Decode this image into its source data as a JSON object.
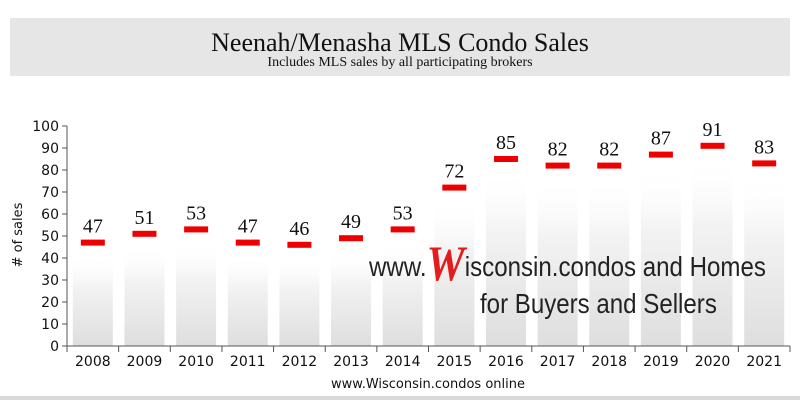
{
  "page": {
    "title": "Neenah/Menasha MLS Condo Sales",
    "subtitle": "Includes MLS sales by all participating brokers"
  },
  "watermark": {
    "line1_prefix": "www.",
    "line1_logo_letter": "W",
    "line1_suffix": "isconsin.condos and Homes",
    "line2": "for Buyers and Sellers",
    "logo_color": "#e31c1c"
  },
  "chart_data": {
    "type": "bar",
    "categories": [
      "2008",
      "2009",
      "2010",
      "2011",
      "2012",
      "2013",
      "2014",
      "2015",
      "2016",
      "2017",
      "2018",
      "2019",
      "2020",
      "2021"
    ],
    "values": [
      47,
      51,
      53,
      47,
      46,
      49,
      53,
      72,
      85,
      82,
      82,
      87,
      91,
      83
    ],
    "title": "",
    "xlabel": "www.Wisconsin.condos online",
    "ylabel": "# of sales",
    "ylim": [
      0,
      100
    ],
    "yticks": [
      0,
      10,
      20,
      30,
      40,
      50,
      60,
      70,
      80,
      90,
      100
    ],
    "grid": false,
    "marker_color": "#ee0000"
  }
}
